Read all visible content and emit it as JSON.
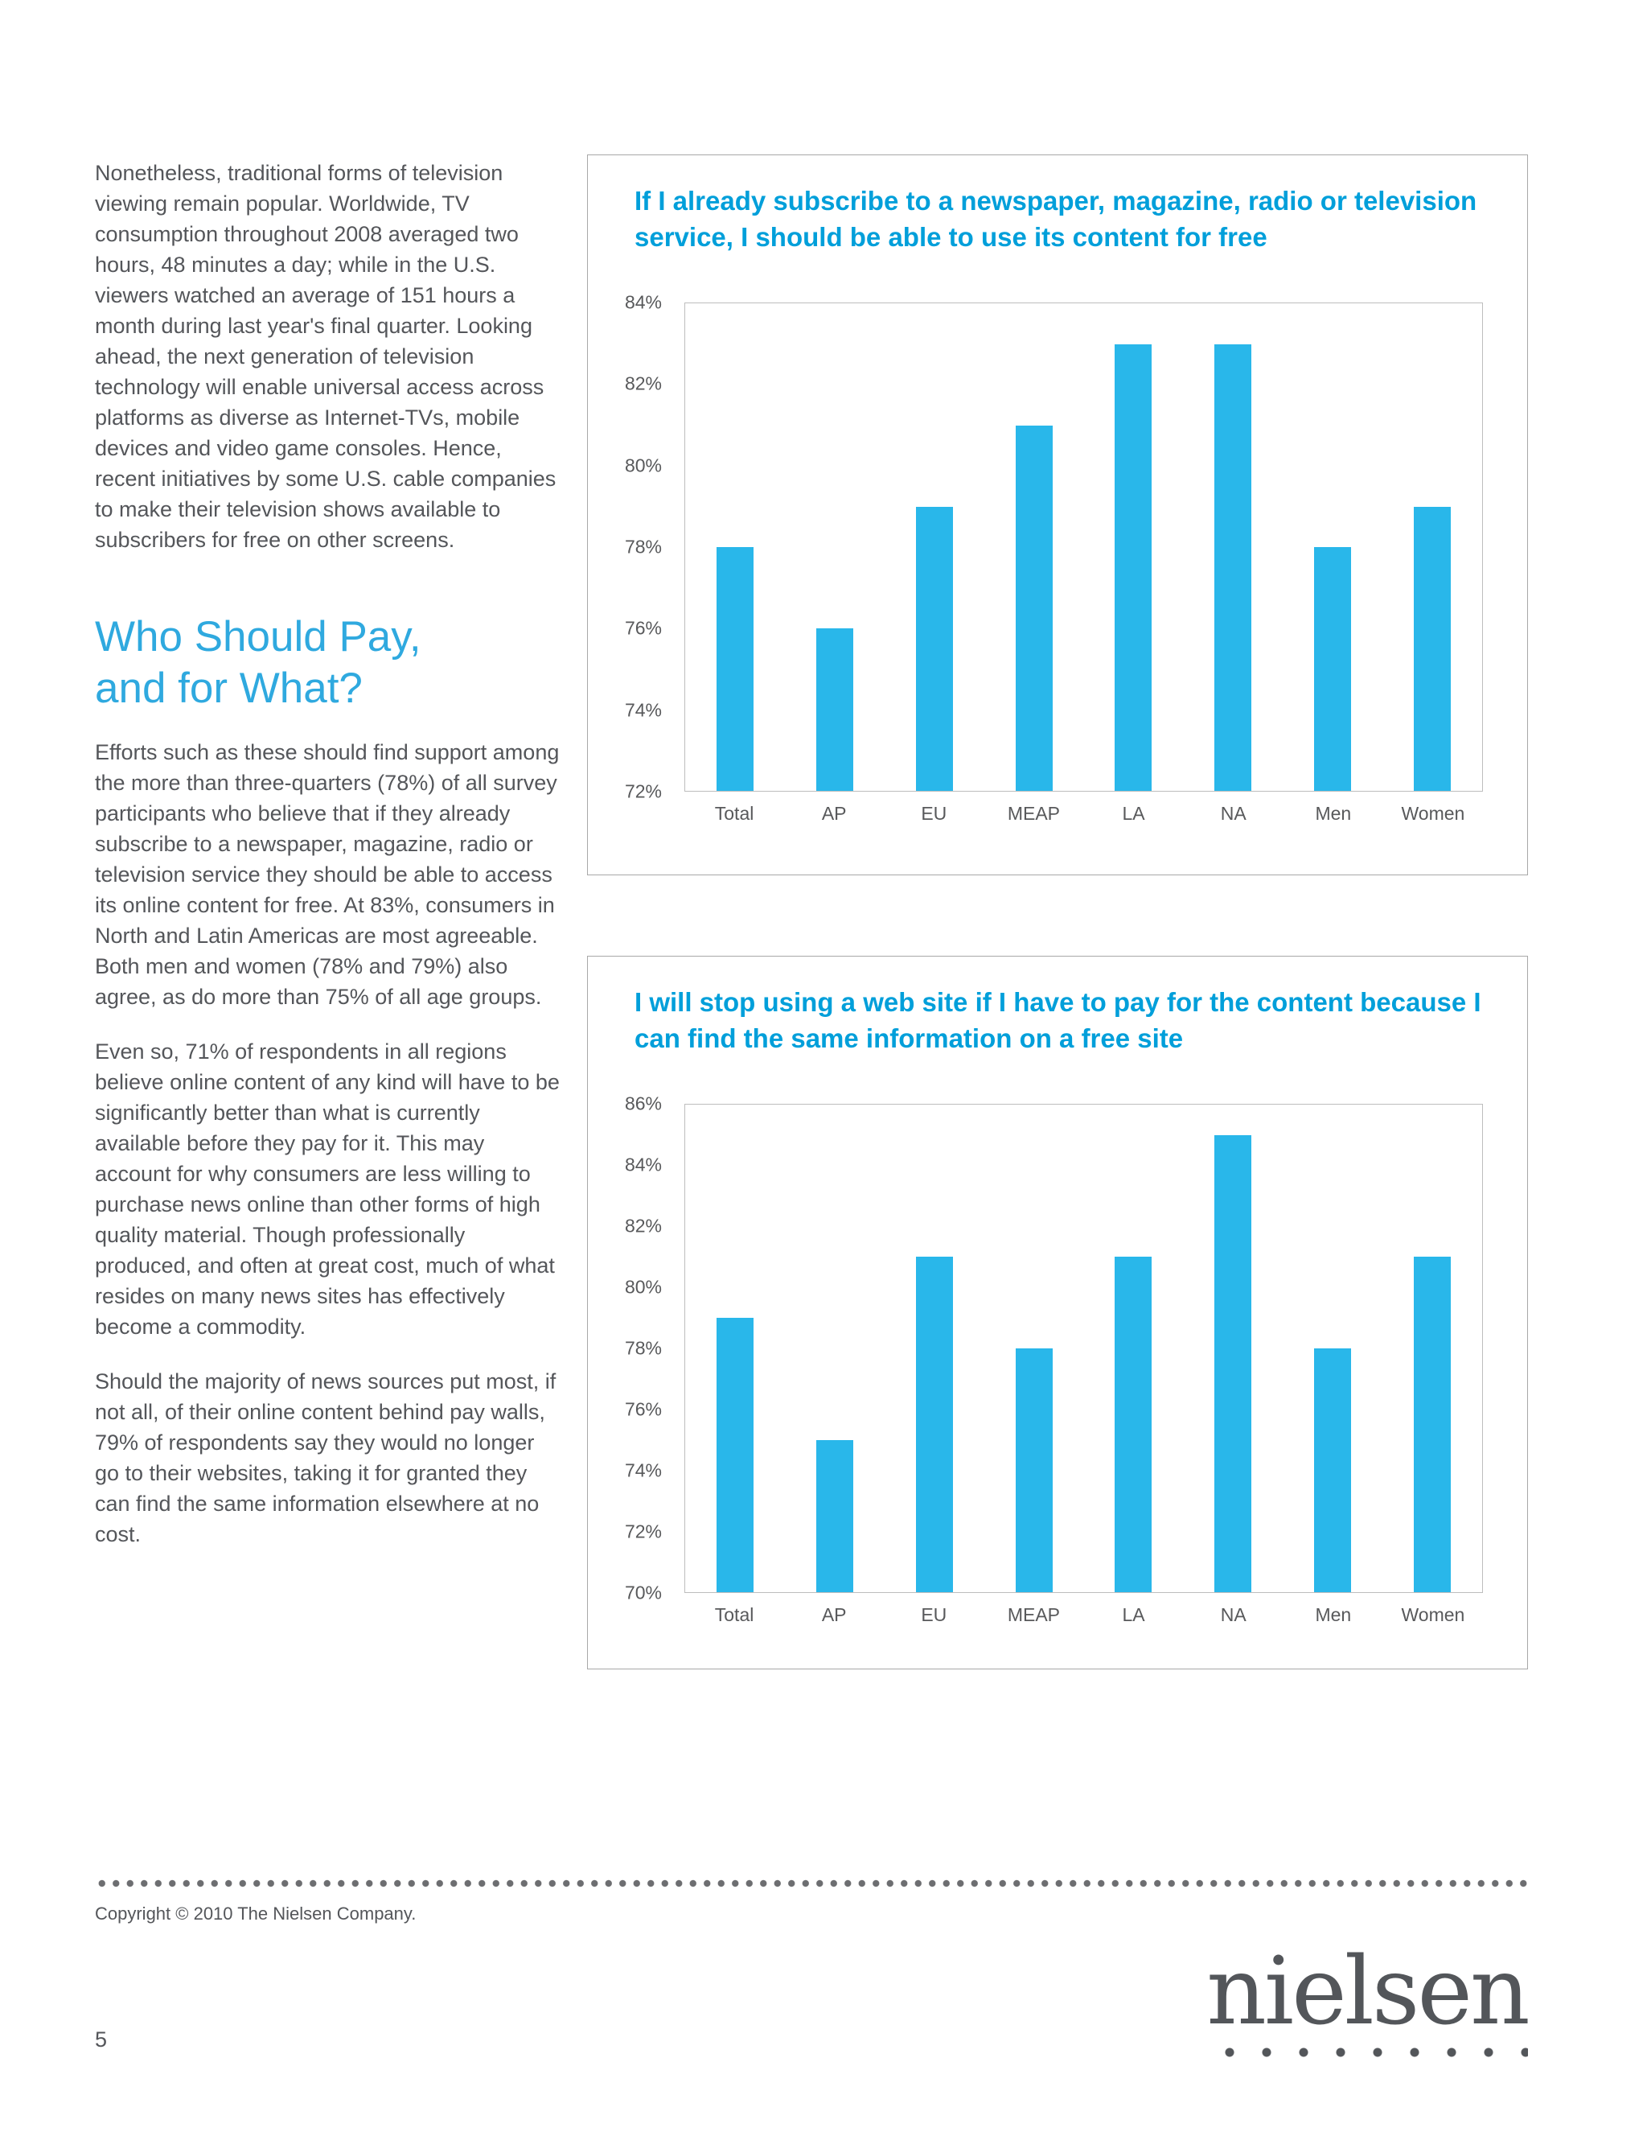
{
  "accent_color": "#009FDA",
  "bar_color": "#29B7EA",
  "text_color": "#54565A",
  "left_column": {
    "intro_paragraph": "Nonetheless, traditional forms of television viewing remain popular. Worldwide, TV consumption throughout 2008 averaged two hours, 48 minutes a day; while in the U.S. viewers watched an average of 151 hours a month during last year's final quarter. Looking ahead, the next generation of television technology will enable universal access across platforms as diverse as Internet-TVs, mobile devices and video game consoles. Hence, recent initiatives by some U.S. cable companies to make their television shows available to subscribers for free on other screens.",
    "heading_line1": "Who Should Pay,",
    "heading_line2": "and for What?",
    "paragraphs": [
      "Efforts such as these should find support among the more than three-quarters (78%) of all survey participants who believe that if they already subscribe to a newspaper, magazine, radio or television service they should be able to access its online content for free. At 83%, consumers in North and Latin Americas are most agreeable. Both men and women (78% and 79%) also agree, as do more than 75% of all age groups.",
      "Even so, 71% of respondents in all regions believe online content of any kind will have to be significantly better than what is currently available before they pay for it. This may account for why consumers are less willing to purchase news online than other forms of high quality material. Though professionally produced, and often at great cost, much of what resides on many news sites has effectively become a commodity.",
      "Should the majority of news sources put most, if not all, of their online content behind pay walls, 79% of respondents say they would no longer go to their websites, taking it for granted they can find the same information elsewhere at no cost."
    ]
  },
  "chart_data": [
    {
      "type": "bar",
      "title": "If I already subscribe to a newspaper, magazine, radio or television service, I should be able to use its content for free",
      "categories": [
        "Total",
        "AP",
        "EU",
        "MEAP",
        "LA",
        "NA",
        "Men",
        "Women"
      ],
      "values": [
        78,
        76,
        79,
        81,
        83,
        83,
        78,
        79
      ],
      "xlabel": "",
      "ylabel": "",
      "ylim": [
        72,
        84
      ],
      "ystep": 2,
      "tick_suffix": "%",
      "grid": false,
      "legend": false
    },
    {
      "type": "bar",
      "title": "I will stop using a web site if I have to pay for the content because I can find the same information on a free site",
      "categories": [
        "Total",
        "AP",
        "EU",
        "MEAP",
        "LA",
        "NA",
        "Men",
        "Women"
      ],
      "values": [
        79,
        75,
        81,
        78,
        81,
        85,
        78,
        81
      ],
      "xlabel": "",
      "ylabel": "",
      "ylim": [
        70,
        86
      ],
      "ystep": 2,
      "tick_suffix": "%",
      "grid": false,
      "legend": false
    }
  ],
  "footer": {
    "copyright": "Copyright © 2010  The Nielsen Company.",
    "page_number": "5",
    "logo_text": "nielsen"
  }
}
